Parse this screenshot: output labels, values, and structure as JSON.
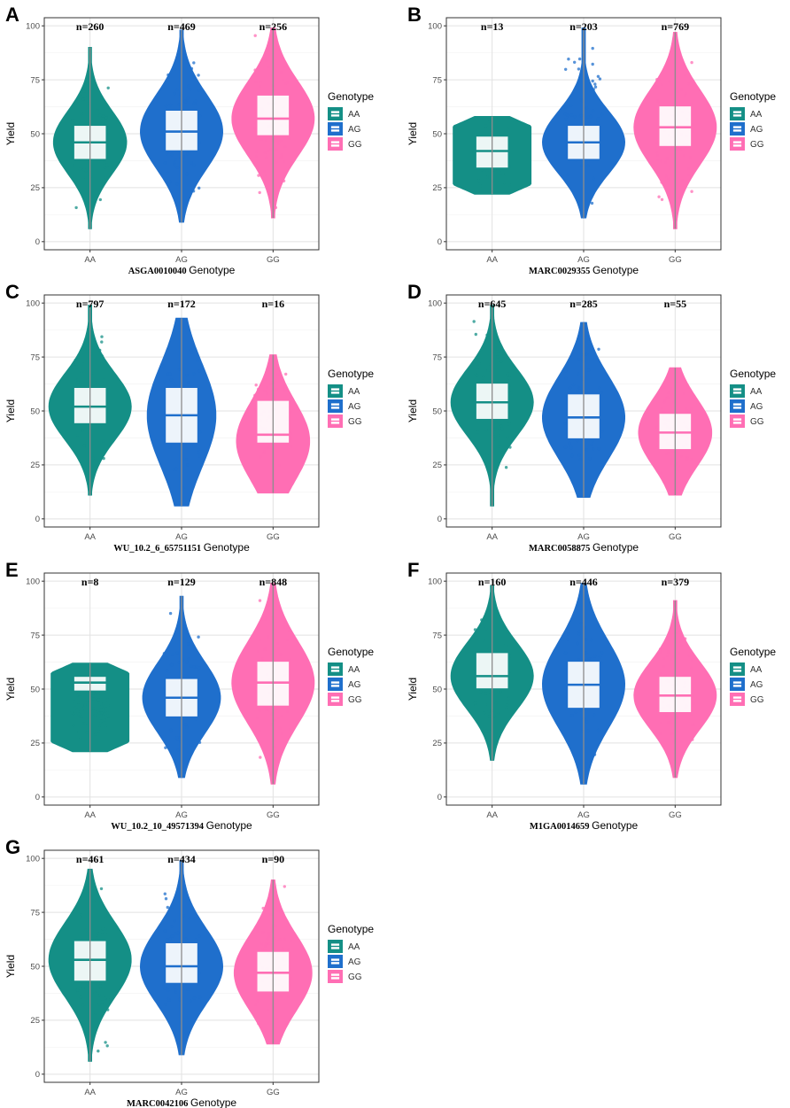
{
  "figure": {
    "y_axis_label": "Yield",
    "x_axis_suffix": "Genotype",
    "legend_title": "Genotype",
    "colors": {
      "AA": "#148f86",
      "AG": "#1f6fcc",
      "GG": "#ff6eb4"
    }
  },
  "chart_data": [
    {
      "panel": "A",
      "type": "violin",
      "marker": "ASGA0010040",
      "ylim": [
        0,
        100
      ],
      "yticks": [
        0,
        25,
        50,
        75,
        100
      ],
      "categories": [
        "AA",
        "AG",
        "GG"
      ],
      "counts": [
        "n=260",
        "n=469",
        "n=256"
      ],
      "groups": [
        {
          "genotype": "AA",
          "min": 6,
          "max": 90,
          "q1": 38,
          "median": 46,
          "q3": 54,
          "mode": 46,
          "width": 0.8
        },
        {
          "genotype": "AG",
          "min": 9,
          "max": 98,
          "q1": 42,
          "median": 51,
          "q3": 61,
          "mode": 51,
          "width": 0.9
        },
        {
          "genotype": "GG",
          "min": 11,
          "max": 99,
          "q1": 49,
          "median": 57,
          "q3": 68,
          "mode": 57,
          "width": 0.9
        }
      ]
    },
    {
      "panel": "B",
      "type": "violin",
      "marker": "MARC0029355",
      "ylim": [
        0,
        100
      ],
      "yticks": [
        0,
        25,
        50,
        75,
        100
      ],
      "categories": [
        "AA",
        "AG",
        "GG"
      ],
      "counts": [
        "n=13",
        "n=203",
        "n=769"
      ],
      "groups": [
        {
          "genotype": "AA",
          "min": 22,
          "max": 58,
          "q1": 34,
          "median": 42,
          "q3": 49,
          "mode": 45,
          "width": 0.85,
          "flat": true
        },
        {
          "genotype": "AG",
          "min": 11,
          "max": 99,
          "q1": 38,
          "median": 46,
          "q3": 54,
          "mode": 46,
          "width": 0.9
        },
        {
          "genotype": "GG",
          "min": 6,
          "max": 97,
          "q1": 44,
          "median": 53,
          "q3": 63,
          "mode": 53,
          "width": 0.9
        }
      ]
    },
    {
      "panel": "C",
      "type": "violin",
      "marker": "WU_10.2_6_65751151",
      "ylim": [
        0,
        100
      ],
      "yticks": [
        0,
        25,
        50,
        75,
        100
      ],
      "categories": [
        "AA",
        "AG",
        "GG"
      ],
      "counts": [
        "n=797",
        "n=172",
        "n=16"
      ],
      "groups": [
        {
          "genotype": "AA",
          "min": 11,
          "max": 99,
          "q1": 44,
          "median": 52,
          "q3": 61,
          "mode": 52,
          "width": 0.9
        },
        {
          "genotype": "AG",
          "min": 6,
          "max": 93,
          "q1": 35,
          "median": 48,
          "q3": 61,
          "mode": 48,
          "width": 0.75
        },
        {
          "genotype": "GG",
          "min": 12,
          "max": 76,
          "q1": 35,
          "median": 39,
          "q3": 55,
          "mode": 36,
          "width": 0.8
        }
      ]
    },
    {
      "panel": "D",
      "type": "violin",
      "marker": "MARC0058875",
      "ylim": [
        0,
        100
      ],
      "yticks": [
        0,
        25,
        50,
        75,
        100
      ],
      "categories": [
        "AA",
        "AG",
        "GG"
      ],
      "counts": [
        "n=645",
        "n=285",
        "n=55"
      ],
      "groups": [
        {
          "genotype": "AA",
          "min": 6,
          "max": 99,
          "q1": 46,
          "median": 54,
          "q3": 63,
          "mode": 54,
          "width": 0.9
        },
        {
          "genotype": "AG",
          "min": 10,
          "max": 91,
          "q1": 37,
          "median": 47,
          "q3": 58,
          "mode": 47,
          "width": 0.9
        },
        {
          "genotype": "GG",
          "min": 11,
          "max": 70,
          "q1": 32,
          "median": 40,
          "q3": 49,
          "mode": 40,
          "width": 0.8
        }
      ]
    },
    {
      "panel": "E",
      "type": "violin",
      "marker": "WU_10.2_10_49571394",
      "ylim": [
        0,
        100
      ],
      "yticks": [
        0,
        25,
        50,
        75,
        100
      ],
      "categories": [
        "AA",
        "AG",
        "GG"
      ],
      "counts": [
        "n=8",
        "n=129",
        "n=848"
      ],
      "groups": [
        {
          "genotype": "AA",
          "min": 21,
          "max": 62,
          "q1": 49,
          "median": 53,
          "q3": 56,
          "mode": 56,
          "width": 0.85,
          "flat": true
        },
        {
          "genotype": "AG",
          "min": 9,
          "max": 93,
          "q1": 37,
          "median": 46,
          "q3": 55,
          "mode": 46,
          "width": 0.85
        },
        {
          "genotype": "GG",
          "min": 6,
          "max": 99,
          "q1": 42,
          "median": 53,
          "q3": 63,
          "mode": 53,
          "width": 0.9
        }
      ]
    },
    {
      "panel": "F",
      "type": "violin",
      "marker": "M1GA0014659",
      "ylim": [
        0,
        100
      ],
      "yticks": [
        0,
        25,
        50,
        75,
        100
      ],
      "categories": [
        "AA",
        "AG",
        "GG"
      ],
      "counts": [
        "n=160",
        "n=446",
        "n=379"
      ],
      "groups": [
        {
          "genotype": "AA",
          "min": 17,
          "max": 98,
          "q1": 50,
          "median": 56,
          "q3": 67,
          "mode": 56,
          "width": 0.9
        },
        {
          "genotype": "AG",
          "min": 6,
          "max": 99,
          "q1": 41,
          "median": 52,
          "q3": 63,
          "mode": 52,
          "width": 0.9
        },
        {
          "genotype": "GG",
          "min": 9,
          "max": 91,
          "q1": 39,
          "median": 47,
          "q3": 56,
          "mode": 47,
          "width": 0.9
        }
      ]
    },
    {
      "panel": "G",
      "type": "violin",
      "marker": "MARC0042106",
      "ylim": [
        0,
        100
      ],
      "yticks": [
        0,
        25,
        50,
        75,
        100
      ],
      "categories": [
        "AA",
        "AG",
        "GG"
      ],
      "counts": [
        "n=461",
        "n=434",
        "n=90"
      ],
      "groups": [
        {
          "genotype": "AA",
          "min": 6,
          "max": 95,
          "q1": 43,
          "median": 53,
          "q3": 62,
          "mode": 53,
          "width": 0.9
        },
        {
          "genotype": "AG",
          "min": 9,
          "max": 99,
          "q1": 42,
          "median": 50,
          "q3": 61,
          "mode": 50,
          "width": 0.9
        },
        {
          "genotype": "GG",
          "min": 14,
          "max": 90,
          "q1": 38,
          "median": 47,
          "q3": 57,
          "mode": 47,
          "width": 0.85
        }
      ]
    }
  ]
}
